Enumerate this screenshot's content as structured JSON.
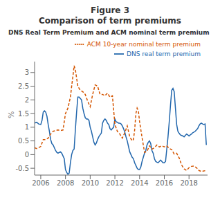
{
  "chart_data": {
    "type": "line",
    "title": [
      "Figure 3",
      "Comparison of term premiums"
    ],
    "subtitle": "DNS Real Term Premium and ACM nominal term premium",
    "y_label": "%",
    "xlim": [
      2005.5,
      2019.5
    ],
    "ylim": [
      -0.75,
      3.4
    ],
    "xticks": [
      2006,
      2008,
      2010,
      2012,
      2014,
      2016,
      2018
    ],
    "yticks": [
      -0.5,
      0,
      0.5,
      1,
      1.5,
      2,
      2.5,
      3
    ],
    "grid": false,
    "legend": "top right",
    "series": [
      {
        "name": "DNS real term premium",
        "color": "#2166ac",
        "line_style": "solid",
        "x": [
          2005.5,
          2005.67,
          2005.83,
          2006.0,
          2006.1,
          2006.2,
          2006.3,
          2006.4,
          2006.5,
          2006.6,
          2006.7,
          2006.8,
          2006.9,
          2007.0,
          2007.1,
          2007.2,
          2007.3,
          2007.4,
          2007.5,
          2007.6,
          2007.7,
          2007.8,
          2007.9,
          2008.0,
          2008.1,
          2008.2,
          2008.3,
          2008.4,
          2008.5,
          2008.6,
          2008.7,
          2008.8,
          2008.9,
          2009.0,
          2009.1,
          2009.2,
          2009.3,
          2009.4,
          2009.5,
          2009.6,
          2009.7,
          2009.8,
          2009.9,
          2010.0,
          2010.1,
          2010.2,
          2010.3,
          2010.4,
          2010.5,
          2010.6,
          2010.7,
          2010.8,
          2010.9,
          2011.0,
          2011.1,
          2011.2,
          2011.3,
          2011.4,
          2011.5,
          2011.6,
          2011.7,
          2011.8,
          2011.9,
          2012.0,
          2012.1,
          2012.2,
          2012.3,
          2012.4,
          2012.5,
          2012.6,
          2012.7,
          2012.8,
          2012.9,
          2013.0,
          2013.1,
          2013.2,
          2013.3,
          2013.4,
          2013.5,
          2013.6,
          2013.7,
          2013.8,
          2013.9,
          2014.0,
          2014.1,
          2014.2,
          2014.3,
          2014.4,
          2014.5,
          2014.6,
          2014.7,
          2014.8,
          2014.9,
          2015.0,
          2015.1,
          2015.2,
          2015.3,
          2015.4,
          2015.5,
          2015.6,
          2015.7,
          2015.8,
          2015.9,
          2016.0,
          2016.1,
          2016.2,
          2016.3,
          2016.4,
          2016.5,
          2016.6,
          2016.7,
          2016.8,
          2016.9,
          2017.0,
          2017.1,
          2017.2,
          2017.3,
          2017.4,
          2017.5,
          2017.6,
          2017.7,
          2017.8,
          2017.9,
          2018.0,
          2018.1,
          2018.2,
          2018.3,
          2018.4,
          2018.5,
          2018.6,
          2018.7,
          2018.8,
          2018.9,
          2019.0,
          2019.1,
          2019.2,
          2019.3,
          2019.4
        ],
        "values": [
          1.15,
          1.18,
          1.12,
          1.1,
          1.25,
          1.55,
          1.6,
          1.55,
          1.4,
          1.1,
          0.85,
          0.55,
          0.4,
          0.35,
          0.25,
          0.15,
          0.08,
          0.05,
          0.08,
          0.1,
          0.05,
          -0.05,
          -0.15,
          -0.55,
          -0.65,
          -0.72,
          -0.68,
          -0.3,
          0.0,
          0.15,
          0.2,
          0.9,
          1.55,
          2.1,
          2.1,
          2.05,
          2.0,
          1.7,
          1.5,
          1.35,
          1.3,
          1.3,
          1.25,
          1.0,
          0.85,
          0.65,
          0.45,
          0.35,
          0.42,
          0.55,
          0.65,
          0.72,
          0.78,
          1.15,
          1.25,
          1.3,
          1.25,
          1.15,
          1.1,
          0.95,
          0.9,
          0.95,
          1.0,
          1.3,
          1.2,
          1.18,
          1.15,
          1.15,
          1.12,
          1.05,
          0.95,
          0.82,
          0.65,
          0.5,
          0.3,
          0.1,
          0.0,
          -0.1,
          -0.15,
          -0.3,
          -0.4,
          -0.5,
          -0.55,
          -0.55,
          -0.45,
          -0.25,
          -0.1,
          0.05,
          0.15,
          0.35,
          0.45,
          0.5,
          0.4,
          0.15,
          0.05,
          -0.15,
          -0.25,
          -0.28,
          -0.3,
          -0.25,
          -0.2,
          -0.25,
          -0.3,
          -0.3,
          -0.25,
          0.2,
          0.65,
          1.2,
          1.8,
          2.35,
          2.42,
          2.3,
          1.7,
          1.1,
          0.85,
          0.78,
          0.72,
          0.7,
          0.68,
          0.65,
          0.7,
          0.75,
          0.72,
          0.68,
          0.72,
          0.75,
          0.8,
          0.82,
          0.85,
          0.9,
          0.95,
          1.05,
          1.12,
          1.15,
          1.12,
          1.1,
          1.12,
          0.35
        ]
      },
      {
        "name": "ACM 10-year nominal term premium",
        "color": "#d45500",
        "line_style": "dashed",
        "x": [
          2005.5,
          2005.67,
          2005.83,
          2006.0,
          2006.2,
          2006.4,
          2006.6,
          2006.8,
          2007.0,
          2007.2,
          2007.4,
          2007.6,
          2007.8,
          2008.0,
          2008.2,
          2008.4,
          2008.5,
          2008.6,
          2008.7,
          2008.8,
          2008.9,
          2009.0,
          2009.2,
          2009.4,
          2009.6,
          2009.8,
          2010.0,
          2010.2,
          2010.4,
          2010.6,
          2010.8,
          2011.0,
          2011.2,
          2011.4,
          2011.6,
          2011.8,
          2012.0,
          2012.2,
          2012.4,
          2012.6,
          2012.8,
          2013.0,
          2013.2,
          2013.4,
          2013.5,
          2013.6,
          2013.7,
          2013.8,
          2013.9,
          2014.0,
          2014.2,
          2014.4,
          2014.6,
          2014.8,
          2015.0,
          2015.2,
          2015.4,
          2015.6,
          2015.8,
          2016.0,
          2016.2,
          2016.4,
          2016.6,
          2016.8,
          2017.0,
          2017.2,
          2017.4,
          2017.6,
          2017.8,
          2018.0,
          2018.2,
          2018.4,
          2018.6,
          2018.8,
          2019.0,
          2019.2,
          2019.4
        ],
        "values": [
          0.25,
          0.22,
          0.25,
          0.3,
          0.55,
          0.55,
          0.6,
          0.75,
          0.85,
          0.88,
          0.9,
          0.88,
          0.9,
          1.5,
          1.7,
          2.1,
          2.5,
          2.85,
          3.25,
          3.1,
          2.8,
          2.5,
          2.35,
          2.3,
          2.2,
          1.95,
          1.75,
          2.2,
          2.55,
          2.5,
          2.2,
          2.2,
          2.15,
          2.25,
          2.1,
          2.15,
          1.1,
          0.85,
          0.75,
          0.6,
          0.8,
          1.05,
          0.65,
          0.5,
          0.55,
          0.9,
          1.5,
          1.7,
          1.6,
          1.2,
          0.62,
          0.08,
          0.12,
          0.32,
          0.2,
          0.25,
          0.35,
          0.28,
          0.32,
          0.28,
          0.32,
          0.22,
          0.18,
          0.02,
          0.05,
          -0.12,
          -0.38,
          -0.52,
          -0.58,
          -0.48,
          -0.43,
          -0.42,
          -0.48,
          -0.58,
          -0.62,
          -0.6,
          -0.58
        ]
      }
    ]
  }
}
